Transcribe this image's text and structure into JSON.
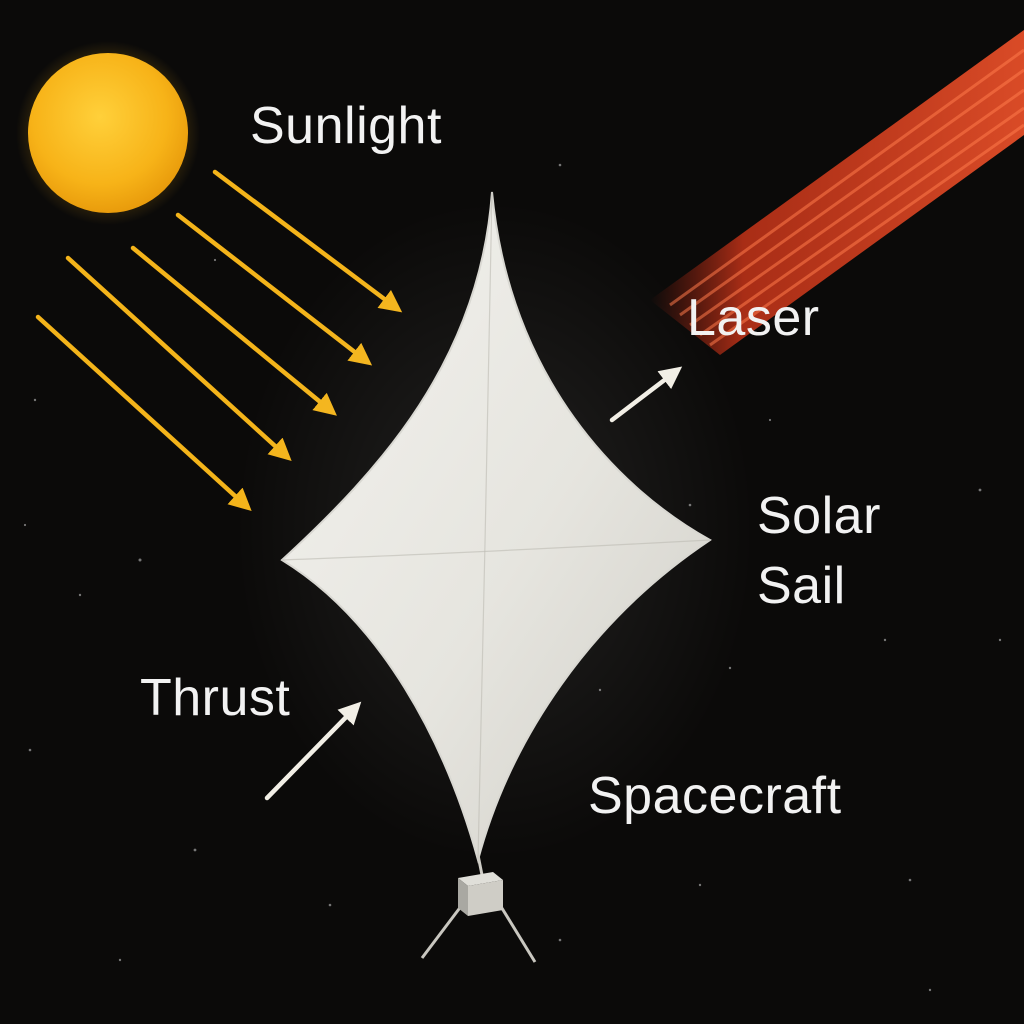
{
  "labels": {
    "sunlight": "Sunlight",
    "laser": "Laser",
    "solar_sail_line1": "Solar",
    "solar_sail_line2": "Sail",
    "thrust": "Thrust",
    "spacecraft": "Spacecraft"
  },
  "colors": {
    "background": "#0b0a09",
    "sun": "#f7b318",
    "sunlight_arrows": "#f4b41a",
    "laser": "#e8431e",
    "sail": "#ecebe6",
    "label_text": "#f2f2f2",
    "thrust_arrow": "#f2efe6"
  },
  "icons": {
    "sun": "sun-icon",
    "sail": "solar-sail-icon",
    "spacecraft": "spacecraft-icon",
    "arrow": "arrow-icon"
  }
}
